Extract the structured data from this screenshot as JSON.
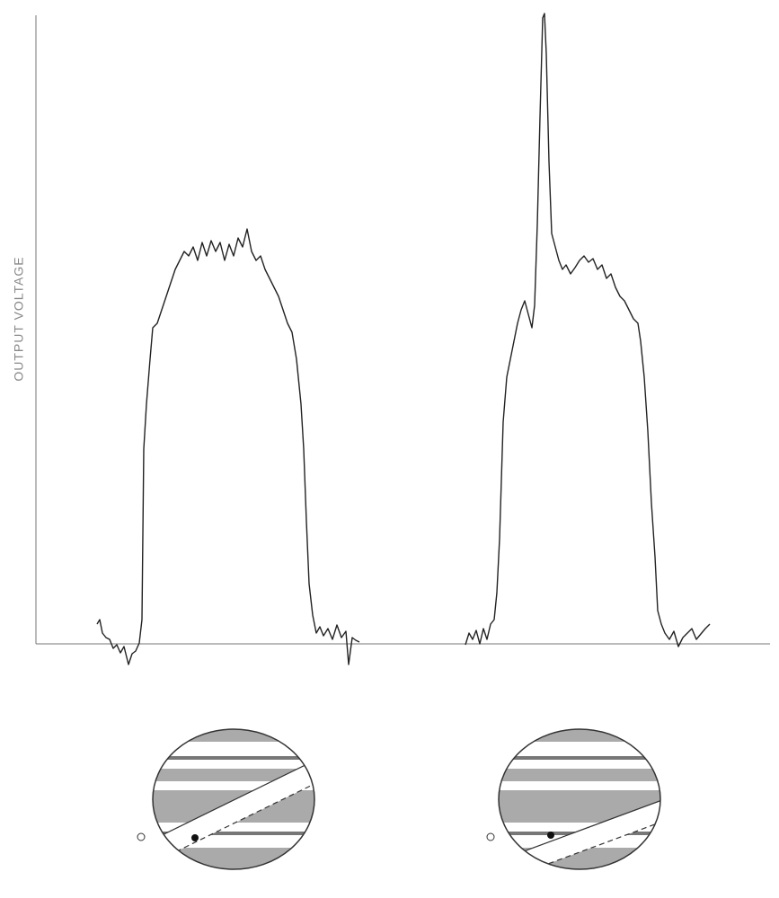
{
  "chart_data": {
    "type": "line",
    "ylabel": "OUTPUT VOLTAGE",
    "color": "#222222",
    "xlim": [
      0,
      817
    ],
    "ylim": [
      0,
      700
    ],
    "x": [
      68,
      71,
      74,
      78,
      82,
      86,
      90,
      94,
      98,
      103,
      107,
      111,
      115,
      118,
      120,
      123,
      127,
      130,
      135,
      140,
      145,
      150,
      155,
      160,
      165,
      170,
      175,
      180,
      185,
      190,
      195,
      200,
      205,
      210,
      215,
      220,
      225,
      230,
      235,
      240,
      245,
      250,
      255,
      260,
      265,
      270,
      275,
      280,
      285,
      290,
      295,
      298,
      301,
      304,
      308,
      312,
      316,
      320,
      325,
      330,
      335,
      340,
      345,
      348,
      352,
      356,
      360,
      420,
      478,
      482,
      486,
      490,
      494,
      498,
      502,
      506,
      510,
      513,
      516,
      520,
      524,
      528,
      532,
      536,
      540,
      544,
      548,
      552,
      555,
      558,
      561,
      564,
      566,
      568,
      571,
      574,
      578,
      582,
      586,
      590,
      595,
      600,
      605,
      610,
      615,
      620,
      625,
      630,
      635,
      640,
      645,
      650,
      655,
      660,
      665,
      670,
      673,
      677,
      681,
      685,
      689,
      692,
      696,
      700,
      705,
      710,
      715,
      720,
      725,
      730,
      735,
      740,
      745,
      750
    ],
    "values": [
      22,
      27,
      12,
      7,
      5,
      -5,
      -1,
      -10,
      -3,
      -23,
      -11,
      -8,
      1,
      27,
      217,
      267,
      317,
      352,
      357,
      372,
      387,
      402,
      417,
      427,
      437,
      432,
      442,
      427,
      447,
      432,
      449,
      437,
      447,
      427,
      445,
      432,
      452,
      442,
      462,
      437,
      427,
      432,
      417,
      407,
      397,
      387,
      372,
      357,
      347,
      317,
      267,
      217,
      137,
      67,
      32,
      12,
      19,
      9,
      17,
      5,
      21,
      7,
      14,
      -23,
      7,
      4,
      2,
      null,
      -1,
      12,
      5,
      15,
      0,
      17,
      5,
      22,
      27,
      57,
      117,
      247,
      297,
      317,
      337,
      357,
      372,
      382,
      367,
      352,
      377,
      467,
      587,
      697,
      702,
      657,
      537,
      457,
      442,
      427,
      417,
      422,
      412,
      419,
      427,
      432,
      425,
      429,
      417,
      422,
      407,
      412,
      397,
      387,
      382,
      372,
      362,
      357,
      337,
      297,
      237,
      157,
      97,
      37,
      22,
      12,
      5,
      14,
      -3,
      7,
      12,
      17,
      5,
      11,
      17,
      22
    ]
  }
}
